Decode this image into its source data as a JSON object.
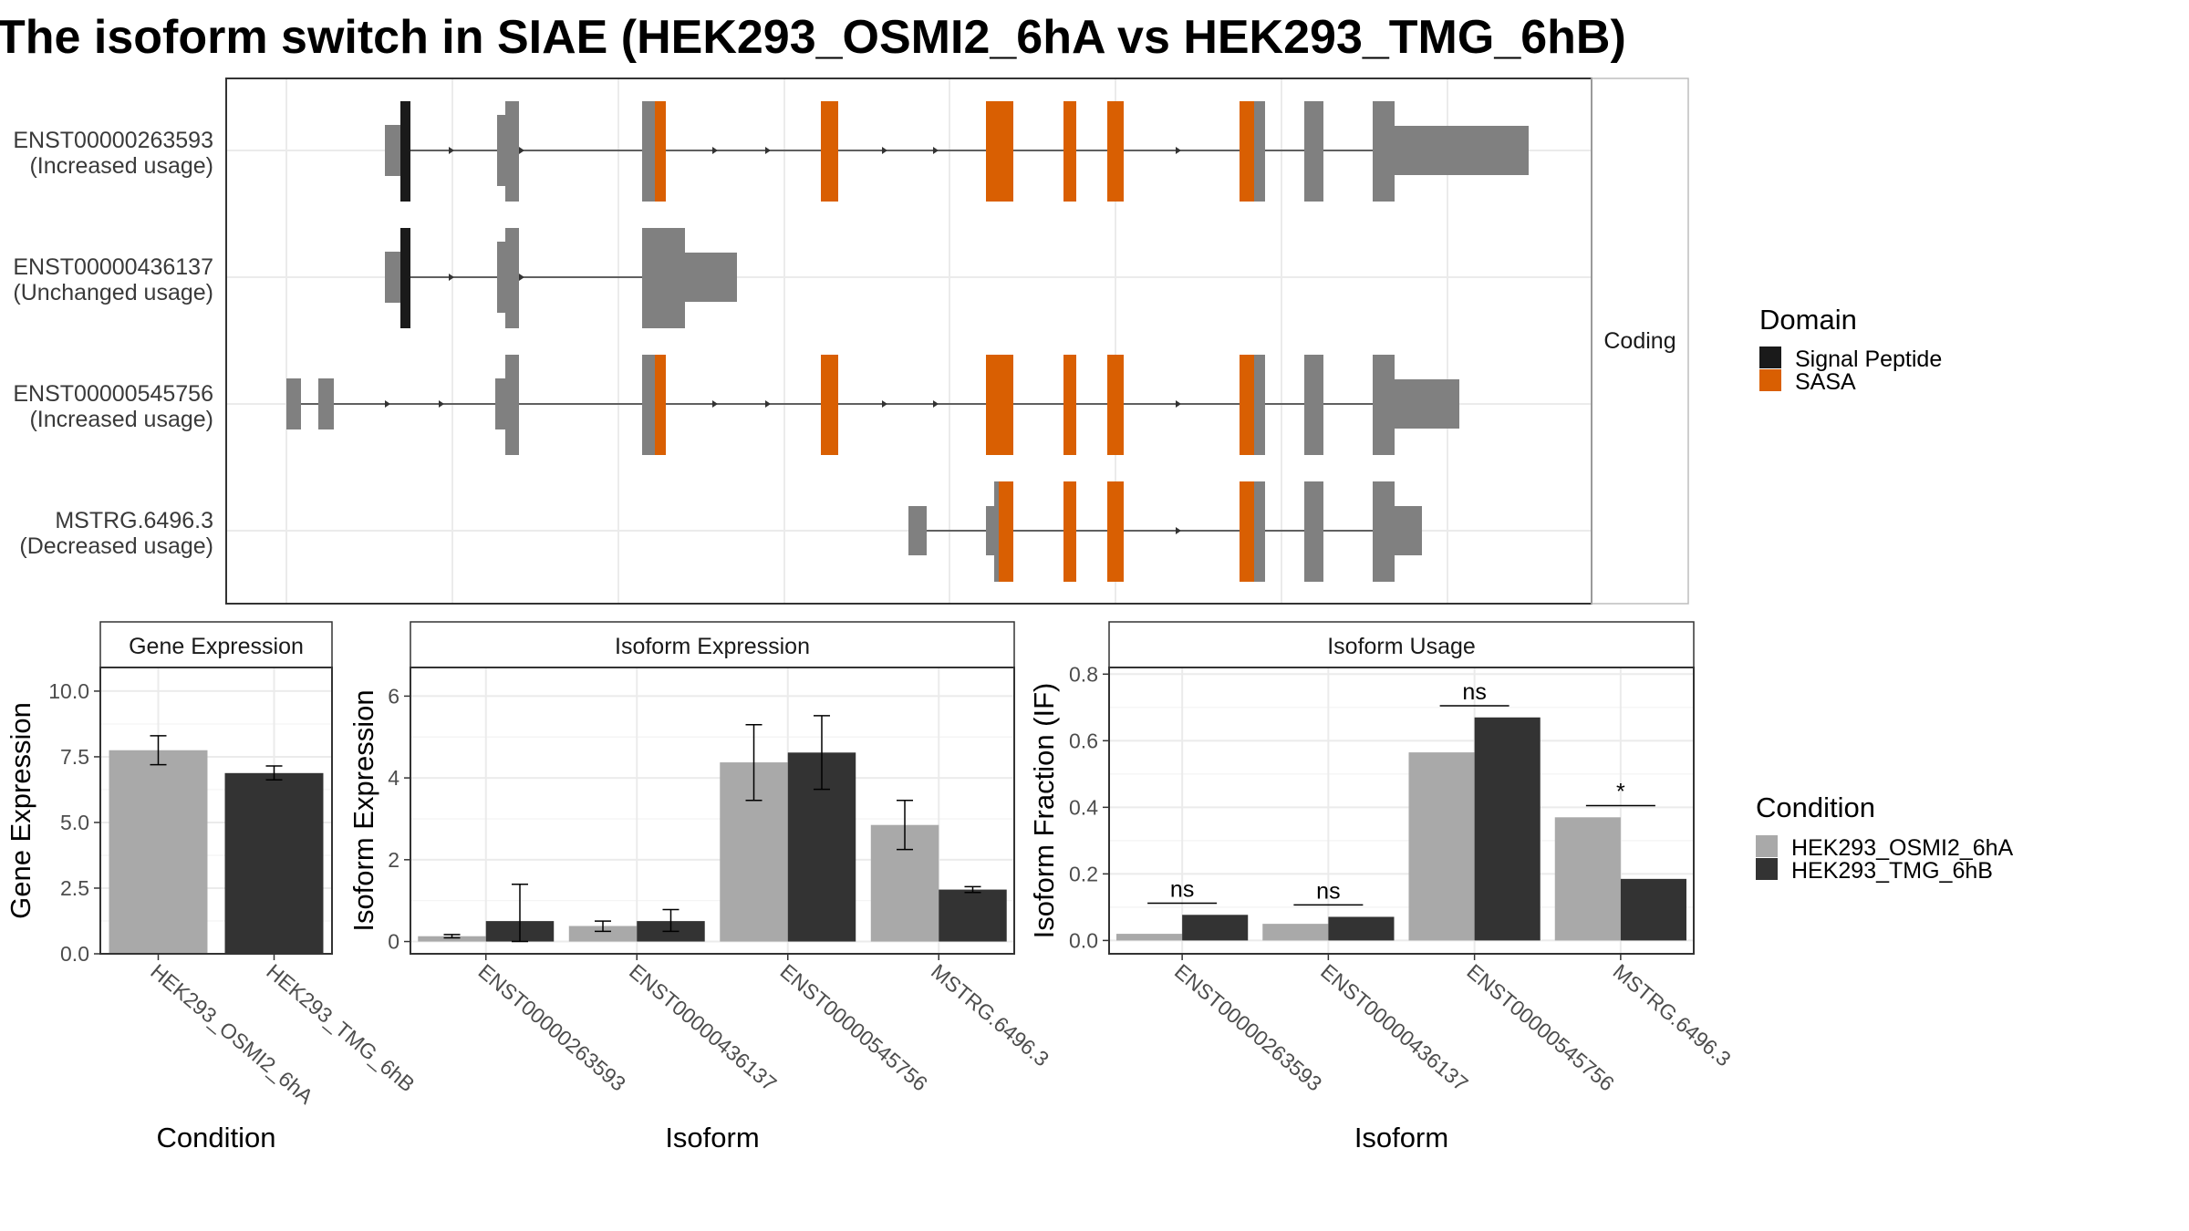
{
  "title": "The isoform switch in SIAE (HEK293_OSMI2_6hA vs HEK293_TMG_6hB)",
  "colors": {
    "exon": "#808080",
    "signal_peptide": "#1a1a1a",
    "sasa": "#d95f02",
    "cond_a": "#a9a9a9",
    "cond_b": "#333333",
    "grid": "#ebebeb",
    "panel_border": "#333333"
  },
  "structure": {
    "strip_label": "Coding",
    "transcripts": [
      {
        "id": "ENST00000263593",
        "usage": "(Increased usage)"
      },
      {
        "id": "ENST00000436137",
        "usage": "(Unchanged usage)"
      },
      {
        "id": "ENST00000545756",
        "usage": "(Increased usage)"
      },
      {
        "id": "MSTRG.6496.3",
        "usage": "(Decreased usage)"
      }
    ]
  },
  "domain_legend": {
    "title": "Domain",
    "items": [
      {
        "label": "Signal Peptide",
        "color": "#1a1a1a"
      },
      {
        "label": "SASA",
        "color": "#d95f02"
      }
    ]
  },
  "condition_legend": {
    "title": "Condition",
    "items": [
      {
        "label": "HEK293_OSMI2_6hA",
        "color": "#a9a9a9"
      },
      {
        "label": "HEK293_TMG_6hB",
        "color": "#333333"
      }
    ]
  },
  "chart_data": [
    {
      "type": "bar",
      "title": "Gene Expression",
      "xlabel": "Condition",
      "ylabel": "Gene Expression",
      "categories": [
        "HEK293_OSMI2_6hA",
        "HEK293_TMG_6hB"
      ],
      "values": [
        7.75,
        6.88
      ],
      "errors": [
        [
          7.2,
          8.3
        ],
        [
          6.62,
          7.15
        ]
      ],
      "ylim": [
        0,
        10.9
      ],
      "yticks": [
        "0.0",
        "2.5",
        "5.0",
        "7.5",
        "10.0"
      ],
      "ytick_values": [
        0,
        2.5,
        5,
        7.5,
        10
      ],
      "grid": true
    },
    {
      "type": "bar",
      "title": "Isoform Expression",
      "xlabel": "Isoform",
      "ylabel": "Isoform Expression",
      "categories": [
        "ENST00000263593",
        "ENST00000436137",
        "ENST00000545756",
        "MSTRG.6496.3"
      ],
      "series": [
        {
          "name": "HEK293_OSMI2_6hA",
          "values": [
            0.13,
            0.38,
            4.38,
            2.85
          ],
          "errors": [
            [
              0.09,
              0.17
            ],
            [
              0.25,
              0.5
            ],
            [
              3.45,
              5.3
            ],
            [
              2.25,
              3.45
            ]
          ]
        },
        {
          "name": "HEK293_TMG_6hB",
          "values": [
            0.5,
            0.5,
            4.62,
            1.27
          ],
          "errors": [
            [
              0.0,
              1.4
            ],
            [
              0.25,
              0.78
            ],
            [
              3.72,
              5.52
            ],
            [
              1.2,
              1.34
            ]
          ]
        }
      ],
      "ylim": [
        -0.3,
        6.7
      ],
      "yticks": [
        "0",
        "2",
        "4",
        "6"
      ],
      "ytick_values": [
        0,
        2,
        4,
        6
      ],
      "grid": true
    },
    {
      "type": "bar",
      "title": "Isoform Usage",
      "xlabel": "Isoform",
      "ylabel": "Isoform Fraction (IF)",
      "categories": [
        "ENST00000263593",
        "ENST00000436137",
        "ENST00000545756",
        "MSTRG.6496.3"
      ],
      "series": [
        {
          "name": "HEK293_OSMI2_6hA",
          "values": [
            0.02,
            0.05,
            0.565,
            0.37
          ]
        },
        {
          "name": "HEK293_TMG_6hB",
          "values": [
            0.077,
            0.071,
            0.67,
            0.185
          ]
        }
      ],
      "significance": [
        {
          "category": "ENST00000263593",
          "label": "ns",
          "y": 0.112
        },
        {
          "category": "ENST00000436137",
          "label": "ns",
          "y": 0.107
        },
        {
          "category": "ENST00000545756",
          "label": "ns",
          "y": 0.705
        },
        {
          "category": "MSTRG.6496.3",
          "label": "*",
          "y": 0.405
        }
      ],
      "ylim": [
        -0.04,
        0.82
      ],
      "yticks": [
        "0.0",
        "0.2",
        "0.4",
        "0.6",
        "0.8"
      ],
      "ytick_values": [
        0,
        0.2,
        0.4,
        0.6,
        0.8
      ],
      "grid": true
    }
  ]
}
